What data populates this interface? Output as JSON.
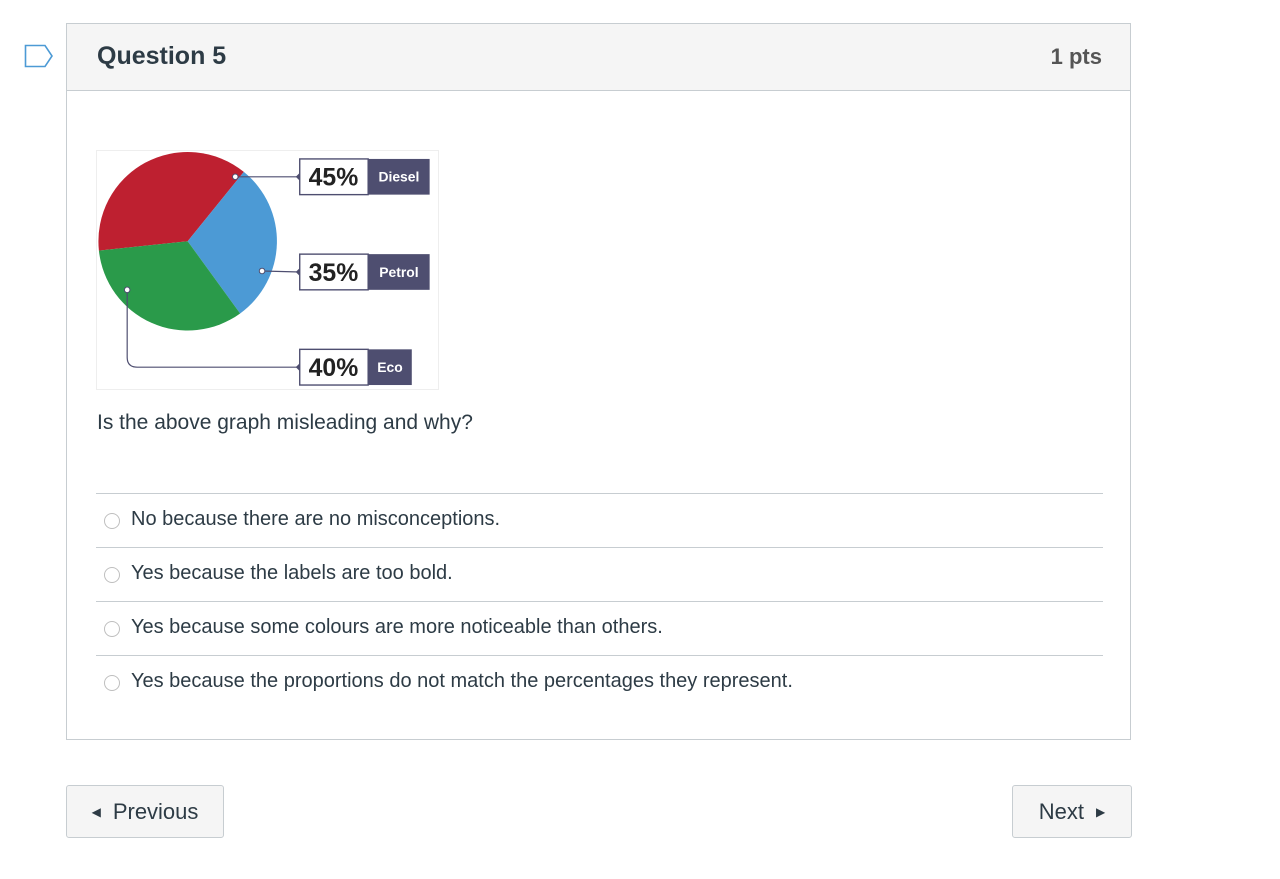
{
  "question": {
    "title": "Question 5",
    "points": "1 pts",
    "prompt": "Is the above graph misleading and why?",
    "answers": [
      "No because there are no misconceptions.",
      "Yes because the labels are too bold.",
      "Yes because some colours are more noticeable than others.",
      "Yes because the proportions do not match the percentages they represent."
    ]
  },
  "navigation": {
    "previous_label": "Previous",
    "next_label": "Next"
  },
  "chart_data": {
    "type": "pie",
    "title": "",
    "categories": [
      "Diesel",
      "Petrol",
      "Eco"
    ],
    "values": [
      45,
      35,
      40
    ],
    "labels": [
      "45%",
      "35%",
      "40%"
    ],
    "colors": [
      "#be2030",
      "#4c9ad5",
      "#2a9a4a"
    ],
    "label_box_color": "#4e4e70"
  },
  "icons": {
    "flag": "flag-outline-icon",
    "previous": "triangle-left-icon",
    "next": "triangle-right-icon"
  }
}
